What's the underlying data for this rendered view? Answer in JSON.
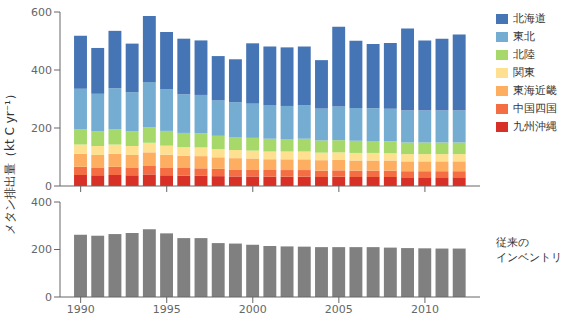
{
  "chart_data": [
    {
      "type": "bar",
      "stacked": true,
      "ylabel": "メタン排出量（kt C yr⁻¹）",
      "x": [
        1990,
        1991,
        1992,
        1993,
        1994,
        1995,
        1996,
        1997,
        1998,
        1999,
        2000,
        2001,
        2002,
        2003,
        2004,
        2005,
        2006,
        2007,
        2008,
        2009,
        2010,
        2011,
        2012
      ],
      "series": [
        {
          "name": "九州沖縄",
          "color": "#d73027",
          "values": [
            38,
            37,
            38,
            37,
            40,
            37,
            36,
            35,
            34,
            33,
            33,
            32,
            32,
            32,
            31,
            32,
            31,
            31,
            31,
            30,
            30,
            30,
            30
          ]
        },
        {
          "name": "中国四国",
          "color": "#f46d43",
          "values": [
            28,
            27,
            28,
            27,
            29,
            27,
            26,
            26,
            25,
            24,
            24,
            23,
            23,
            23,
            22,
            22,
            22,
            22,
            22,
            21,
            21,
            21,
            21
          ]
        },
        {
          "name": "東海近畿",
          "color": "#fdae61",
          "values": [
            45,
            43,
            45,
            43,
            47,
            44,
            42,
            42,
            40,
            39,
            38,
            37,
            37,
            37,
            36,
            36,
            35,
            35,
            35,
            34,
            34,
            34,
            34
          ]
        },
        {
          "name": "関東",
          "color": "#fee090",
          "values": [
            32,
            31,
            32,
            31,
            33,
            31,
            30,
            30,
            28,
            28,
            27,
            27,
            27,
            27,
            26,
            26,
            26,
            26,
            25,
            25,
            25,
            25,
            25
          ]
        },
        {
          "name": "北陸",
          "color": "#a6d96a",
          "values": [
            52,
            50,
            52,
            50,
            54,
            51,
            49,
            49,
            46,
            45,
            44,
            44,
            43,
            44,
            42,
            42,
            42,
            41,
            41,
            40,
            40,
            40,
            40
          ]
        },
        {
          "name": "東北",
          "color": "#74add1",
          "values": [
            140,
            130,
            142,
            135,
            155,
            143,
            133,
            132,
            122,
            120,
            118,
            116,
            114,
            116,
            110,
            116,
            113,
            113,
            112,
            110,
            110,
            110,
            110
          ]
        },
        {
          "name": "北海道",
          "color": "#4575b4",
          "values": [
            183,
            158,
            198,
            168,
            228,
            198,
            192,
            188,
            153,
            148,
            208,
            202,
            202,
            202,
            167,
            275,
            232,
            222,
            227,
            283,
            242,
            248,
            262
          ]
        }
      ],
      "xlim": [
        1988.8,
        2013.2
      ],
      "xticks": [
        1990,
        1995,
        2000,
        2005,
        2010
      ],
      "ylim": [
        0,
        600
      ],
      "yticks": [
        0,
        200,
        400,
        600
      ],
      "tick_labels": "y",
      "legend": "right",
      "grid": false
    },
    {
      "type": "bar",
      "x": [
        1990,
        1991,
        1992,
        1993,
        1994,
        1995,
        1996,
        1997,
        1998,
        1999,
        2000,
        2001,
        2002,
        2003,
        2004,
        2005,
        2006,
        2007,
        2008,
        2009,
        2010,
        2011,
        2012
      ],
      "values": [
        262,
        258,
        265,
        270,
        285,
        268,
        248,
        248,
        227,
        225,
        220,
        215,
        213,
        212,
        210,
        210,
        210,
        210,
        208,
        206,
        205,
        204,
        204
      ],
      "color": "#808080",
      "xlim": [
        1988.8,
        2013.2
      ],
      "xticks": [
        1990,
        1995,
        2000,
        2005,
        2010
      ],
      "ylim": [
        0,
        400
      ],
      "yticks": [
        0,
        200,
        400
      ],
      "annotation": "従来の\nインベントリ",
      "grid": false
    }
  ]
}
